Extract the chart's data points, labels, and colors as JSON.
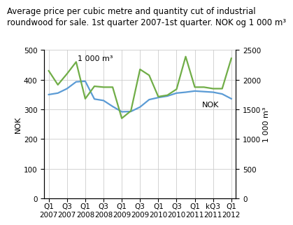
{
  "title_line1": "Average price per cubic metre and quantity cut of industrial",
  "title_line2": "roundwood for sale. 1st quarter 2007-1st quarter. NOK og 1 000 m³",
  "x_labels": [
    "Q1\n2007",
    "Q3\n2007",
    "Q1\n2008",
    "Q3\n2008",
    "Q1\n2009",
    "Q3\n2009",
    "Q1\n2010",
    "Q3\n2010",
    "Q1\n2011",
    "kQ3\n2011",
    "Q1\n2012"
  ],
  "x_positions": [
    0,
    2,
    4,
    6,
    8,
    10,
    12,
    14,
    16,
    18,
    20
  ],
  "nok_x": [
    0,
    1,
    2,
    3,
    4,
    5,
    6,
    7,
    8,
    9,
    10,
    11,
    12,
    13,
    14,
    15,
    16,
    17,
    18,
    19,
    20
  ],
  "nok_y": [
    350,
    355,
    370,
    393,
    395,
    335,
    330,
    310,
    292,
    293,
    308,
    333,
    340,
    345,
    355,
    358,
    362,
    360,
    358,
    352,
    336
  ],
  "qty_x": [
    0,
    1,
    2,
    3,
    4,
    5,
    6,
    7,
    8,
    9,
    10,
    11,
    12,
    13,
    14,
    15,
    16,
    17,
    18,
    19,
    20
  ],
  "qty_y": [
    430,
    383,
    420,
    460,
    336,
    378,
    375,
    375,
    270,
    295,
    435,
    415,
    343,
    348,
    368,
    478,
    375,
    375,
    370,
    370,
    472
  ],
  "nok_color": "#5b9bd5",
  "qty_color": "#70ad47",
  "left_ylim": [
    0,
    500
  ],
  "right_ylim": [
    0,
    2500
  ],
  "left_yticks": [
    0,
    100,
    200,
    300,
    400,
    500
  ],
  "right_yticks": [
    0,
    500,
    1000,
    1500,
    2000,
    2500
  ],
  "left_ylabel": "NOK",
  "right_ylabel": "1 000 m³",
  "nok_annotation": "NOK",
  "qty_annotation": "1 000 m³",
  "background_color": "#ffffff",
  "grid_color": "#cccccc",
  "line_width": 1.6,
  "title_fontsize": 8.5,
  "label_fontsize": 8,
  "tick_fontsize": 7.5,
  "annotation_fontsize": 8
}
